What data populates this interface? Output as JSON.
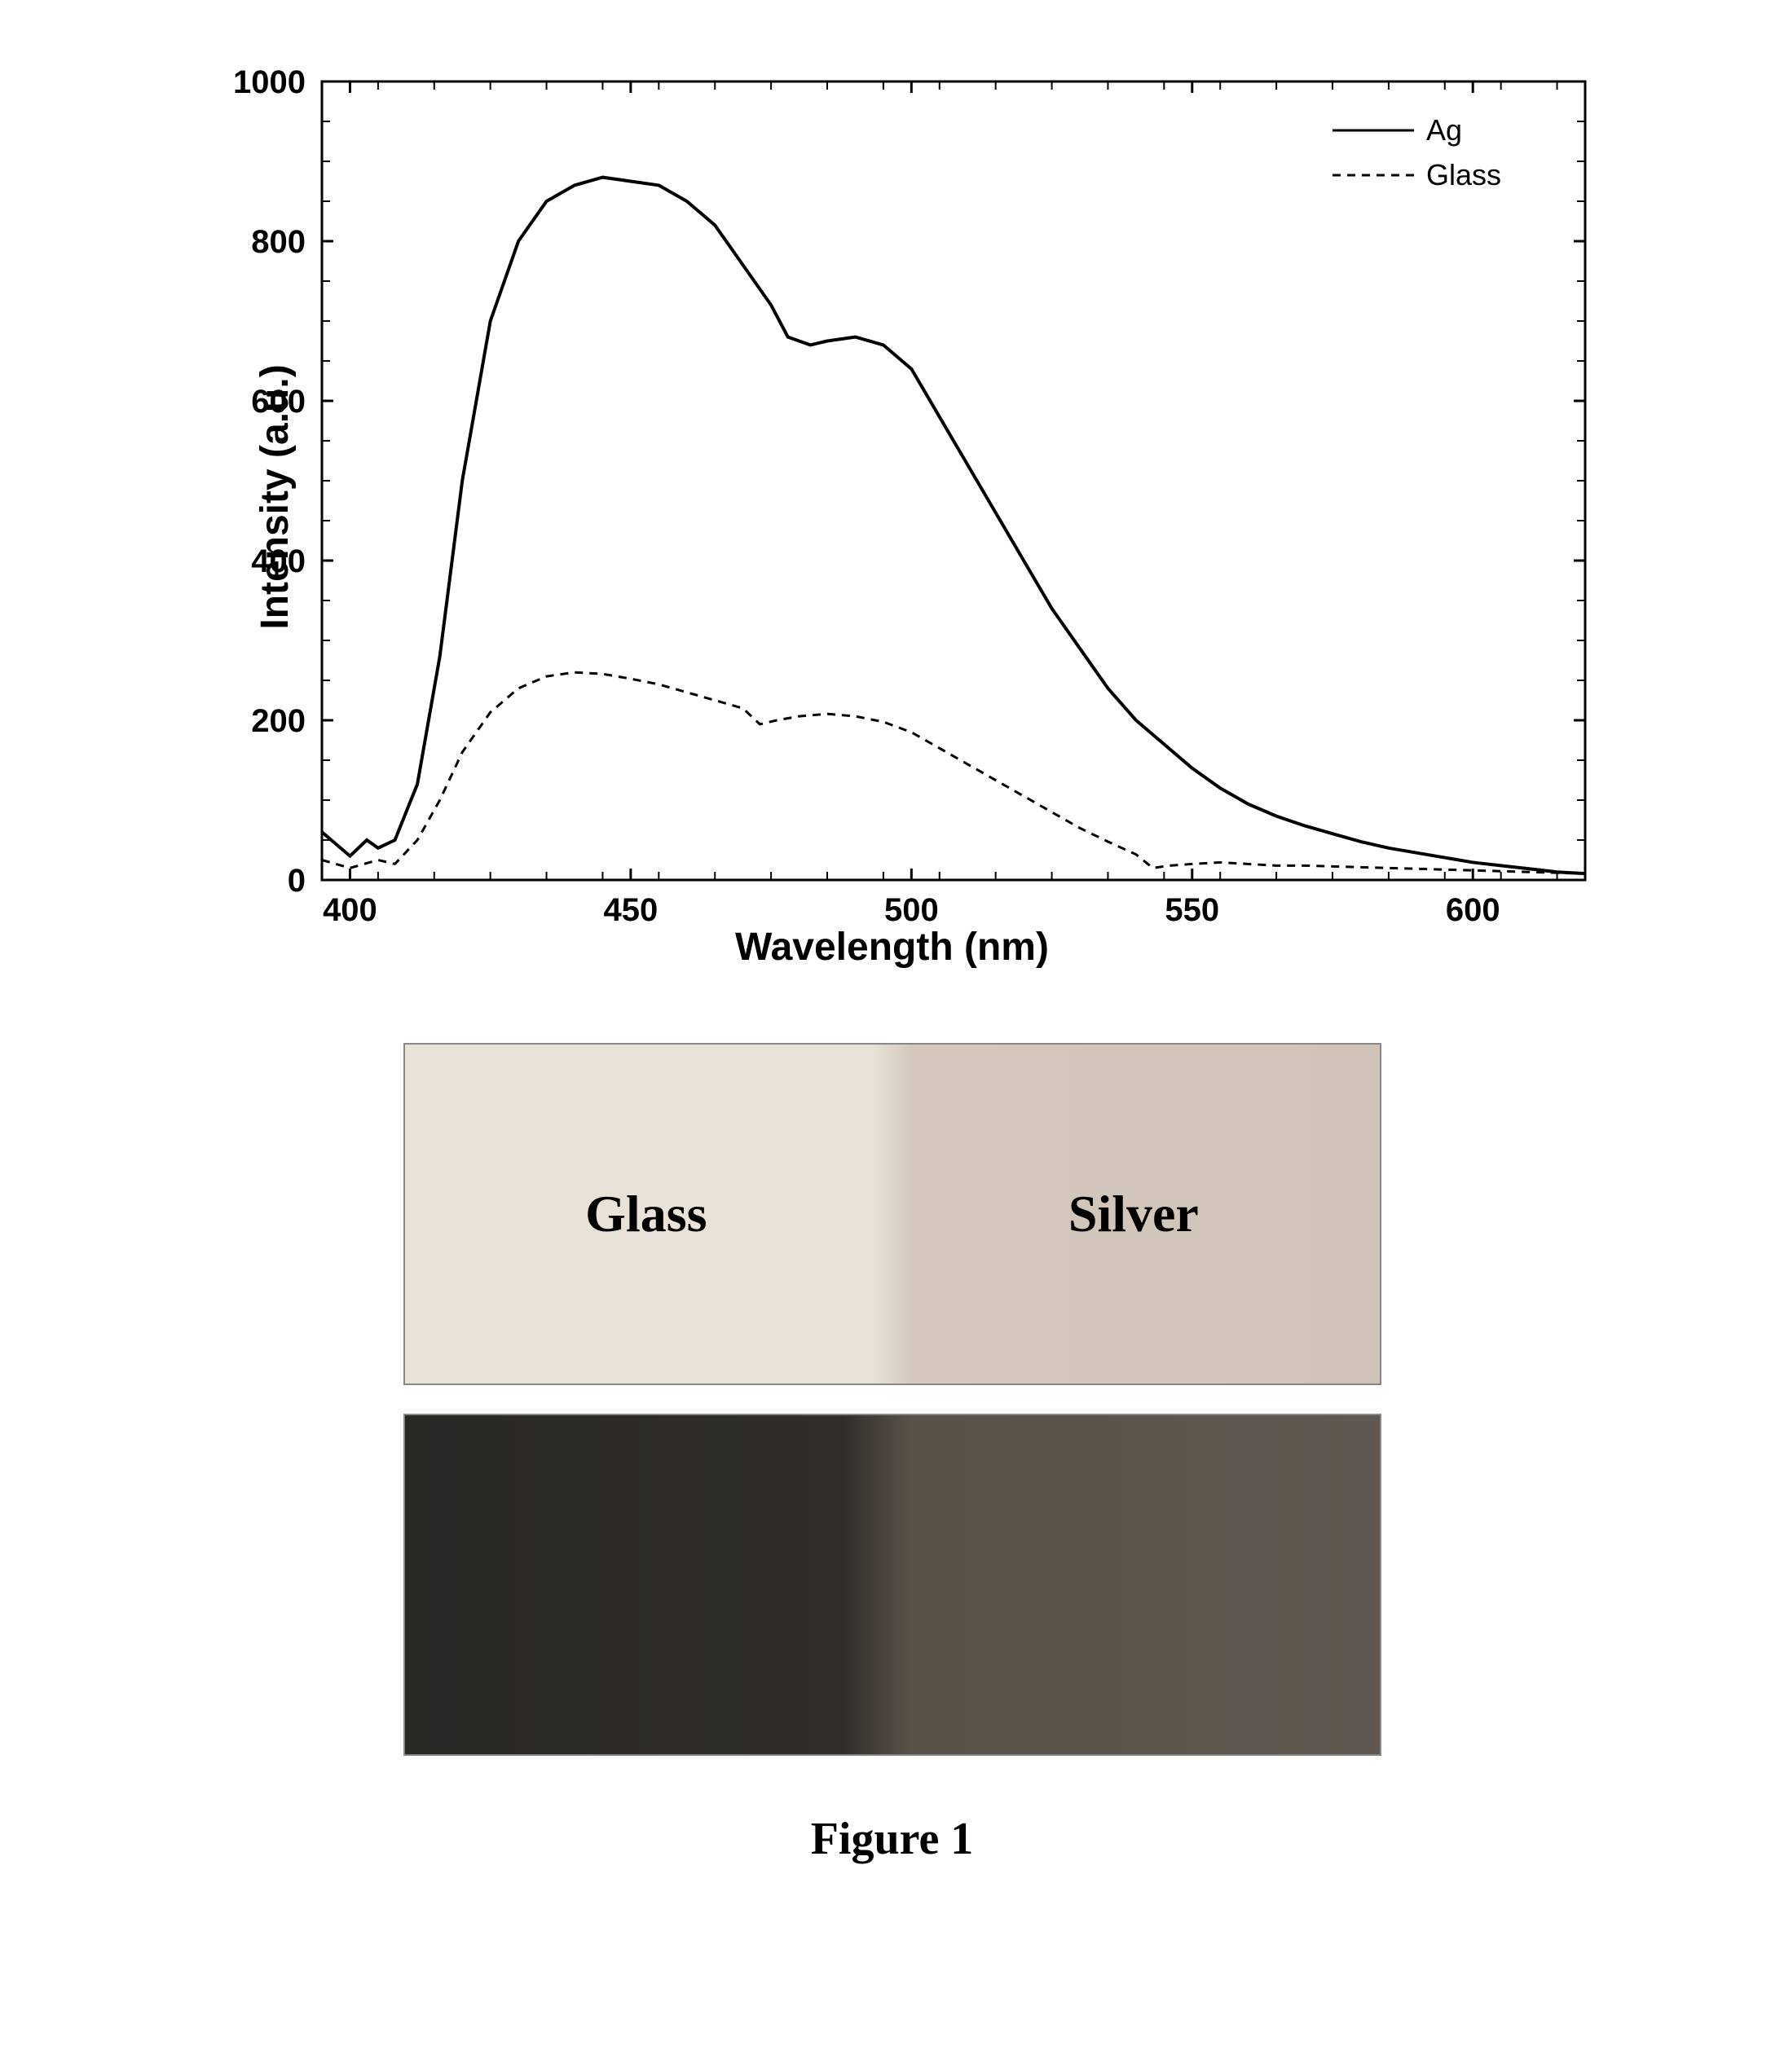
{
  "chart": {
    "type": "line",
    "xlabel": "Wavelength (nm)",
    "ylabel": "Intensity (a.u.)",
    "xlabel_fontsize": 48,
    "ylabel_fontsize": 48,
    "xlim": [
      395,
      620
    ],
    "ylim": [
      0,
      1000
    ],
    "xtick_start": 400,
    "xtick_step": 50,
    "ytick_step": 200,
    "xticks": [
      400,
      450,
      500,
      550,
      600
    ],
    "yticks": [
      0,
      200,
      400,
      600,
      800,
      1000
    ],
    "tick_fontsize": 40,
    "background_color": "#ffffff",
    "axis_color": "#000000",
    "axis_width": 3,
    "tick_length": 14,
    "minor_tick_length": 10,
    "series": [
      {
        "name": "Ag",
        "color": "#000000",
        "line_style": "solid",
        "line_width": 4,
        "data": [
          [
            395,
            60
          ],
          [
            400,
            30
          ],
          [
            403,
            50
          ],
          [
            405,
            40
          ],
          [
            408,
            50
          ],
          [
            412,
            120
          ],
          [
            416,
            280
          ],
          [
            420,
            500
          ],
          [
            425,
            700
          ],
          [
            430,
            800
          ],
          [
            435,
            850
          ],
          [
            440,
            870
          ],
          [
            445,
            880
          ],
          [
            450,
            875
          ],
          [
            455,
            870
          ],
          [
            460,
            850
          ],
          [
            465,
            820
          ],
          [
            470,
            770
          ],
          [
            475,
            720
          ],
          [
            478,
            680
          ],
          [
            482,
            670
          ],
          [
            485,
            675
          ],
          [
            490,
            680
          ],
          [
            495,
            670
          ],
          [
            500,
            640
          ],
          [
            505,
            580
          ],
          [
            510,
            520
          ],
          [
            515,
            460
          ],
          [
            520,
            400
          ],
          [
            525,
            340
          ],
          [
            530,
            290
          ],
          [
            535,
            240
          ],
          [
            540,
            200
          ],
          [
            545,
            170
          ],
          [
            550,
            140
          ],
          [
            555,
            115
          ],
          [
            560,
            95
          ],
          [
            565,
            80
          ],
          [
            570,
            68
          ],
          [
            575,
            58
          ],
          [
            580,
            48
          ],
          [
            585,
            40
          ],
          [
            590,
            34
          ],
          [
            595,
            28
          ],
          [
            600,
            22
          ],
          [
            605,
            18
          ],
          [
            610,
            14
          ],
          [
            615,
            10
          ],
          [
            620,
            8
          ]
        ]
      },
      {
        "name": "Glass",
        "color": "#000000",
        "line_style": "dashed",
        "dash_pattern": "10,8",
        "line_width": 3,
        "data": [
          [
            395,
            25
          ],
          [
            400,
            15
          ],
          [
            405,
            25
          ],
          [
            408,
            20
          ],
          [
            412,
            50
          ],
          [
            416,
            100
          ],
          [
            420,
            160
          ],
          [
            425,
            210
          ],
          [
            430,
            240
          ],
          [
            435,
            255
          ],
          [
            440,
            260
          ],
          [
            445,
            258
          ],
          [
            450,
            252
          ],
          [
            455,
            245
          ],
          [
            460,
            235
          ],
          [
            465,
            225
          ],
          [
            470,
            215
          ],
          [
            473,
            195
          ],
          [
            476,
            200
          ],
          [
            480,
            205
          ],
          [
            485,
            208
          ],
          [
            490,
            205
          ],
          [
            495,
            198
          ],
          [
            500,
            185
          ],
          [
            505,
            165
          ],
          [
            510,
            145
          ],
          [
            515,
            125
          ],
          [
            520,
            105
          ],
          [
            525,
            85
          ],
          [
            530,
            65
          ],
          [
            535,
            48
          ],
          [
            540,
            32
          ],
          [
            543,
            15
          ],
          [
            546,
            18
          ],
          [
            550,
            20
          ],
          [
            555,
            22
          ],
          [
            560,
            20
          ],
          [
            565,
            18
          ],
          [
            570,
            18
          ],
          [
            575,
            17
          ],
          [
            580,
            16
          ],
          [
            585,
            15
          ],
          [
            590,
            14
          ],
          [
            595,
            13
          ],
          [
            600,
            12
          ],
          [
            605,
            11
          ],
          [
            610,
            10
          ],
          [
            615,
            9
          ],
          [
            620,
            8
          ]
        ]
      }
    ],
    "legend": {
      "position": "top-right",
      "items": [
        {
          "label": "Ag",
          "line_style": "solid"
        },
        {
          "label": "Glass",
          "line_style": "dashed"
        }
      ],
      "fontsize": 36,
      "border_color": "#000000"
    }
  },
  "samples": {
    "light_image": {
      "left_label": "Glass",
      "right_label": "Silver",
      "left_bg": "#e8e2d8",
      "right_bg": "#d0c4b8",
      "label_fontsize": 64,
      "label_color": "#000000"
    },
    "dark_image": {
      "left_bg": "#2a2825",
      "right_bg": "#605850"
    }
  },
  "caption": "Figure 1",
  "caption_fontsize": 56
}
